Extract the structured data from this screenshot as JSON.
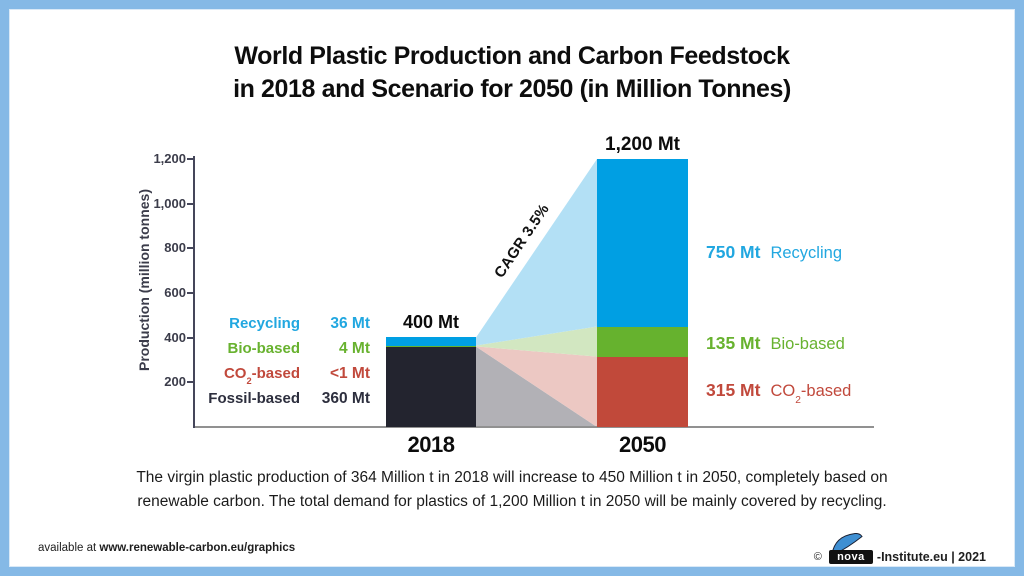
{
  "title": {
    "line1": "World Plastic Production and Carbon Feedstock",
    "line2": "in 2018 and Scenario for 2050 (in Million Tonnes)"
  },
  "chart_data": {
    "type": "bar",
    "stacked": true,
    "title": "World Plastic Production and Carbon Feedstock in 2018 and Scenario for 2050 (in Million Tonnes)",
    "ylabel": "Production (million tonnes)",
    "ylim": [
      0,
      1200
    ],
    "yticks": [
      200,
      400,
      600,
      800,
      1000,
      1200
    ],
    "ytick_labels": [
      "200",
      "400",
      "600",
      "800",
      "1,000",
      "1,200"
    ],
    "categories": [
      "2018",
      "2050"
    ],
    "series": [
      {
        "key": "fossil",
        "name": "Fossil-based",
        "values": [
          360,
          0
        ],
        "display": [
          "360 Mt",
          null
        ],
        "color": "#23242f",
        "band_color": "#b2b1b6"
      },
      {
        "key": "co2",
        "name": "CO2-based",
        "values": [
          0.8,
          315
        ],
        "display": [
          "<1 Mt",
          "315 Mt"
        ],
        "color": "#c1493a",
        "band_color": "#ecc8c3"
      },
      {
        "key": "bio",
        "name": "Bio-based",
        "values": [
          4,
          135
        ],
        "display": [
          "4 Mt",
          "135 Mt"
        ],
        "color": "#66b22e",
        "band_color": "#d2e7c1"
      },
      {
        "key": "recycling",
        "name": "Recycling",
        "values": [
          36,
          750
        ],
        "display": [
          "36 Mt",
          "750 Mt"
        ],
        "color": "#009fe3",
        "band_color": "#b3e0f5"
      }
    ],
    "bar_total_labels": [
      "400 Mt",
      "1,200 Mt"
    ],
    "cagr_label": "CAGR 3.5%",
    "legend_position": "left-and-right-of-bars",
    "grid": false
  },
  "left_legend": {
    "rows": [
      {
        "name": "Recycling",
        "value": "36 Mt"
      },
      {
        "name": "Bio-based",
        "value": "4 Mt"
      },
      {
        "name": "CO2-based",
        "value": "<1 Mt"
      },
      {
        "name": "Fossil-based",
        "value": "360 Mt"
      }
    ]
  },
  "right_labels": {
    "rows": [
      {
        "value": "750 Mt",
        "name": "Recycling"
      },
      {
        "value": "135 Mt",
        "name": "Bio-based"
      },
      {
        "value": "315 Mt",
        "name": "CO2-based"
      }
    ]
  },
  "co2_parts": {
    "prefix": "CO",
    "sub": "2",
    "suffix": "-based"
  },
  "caption": {
    "line1": "The virgin plastic production of 364 Million t in 2018 will increase to 450 Million t in 2050, completely based on",
    "line2": "renewable carbon. The total demand for plastics of 1,200 Million t in 2050 will be mainly covered by recycling."
  },
  "footer": {
    "available_prefix": "available at ",
    "available_url": "www.renewable-carbon.eu/graphics",
    "copyright": "©",
    "logo_text": "nova",
    "credit_suffix": "-Institute.eu | 2021"
  },
  "colors": {
    "border": "#85b9e6",
    "bar_fossil": "#23242f",
    "bar_co2": "#c1493a",
    "bar_bio": "#66b22e",
    "bar_recycling": "#009fe3",
    "band_fossil": "#b2b1b6",
    "band_co2": "#ecc8c3",
    "band_bio": "#d2e7c1",
    "band_recycling": "#b3e0f5",
    "text_recycling": "#21a7e0",
    "text_bio": "#68b22f",
    "text_co2": "#c1493c",
    "text_fossil": "#2d2f3e",
    "axis": "#45465a",
    "x_axis_line": "#919191"
  }
}
